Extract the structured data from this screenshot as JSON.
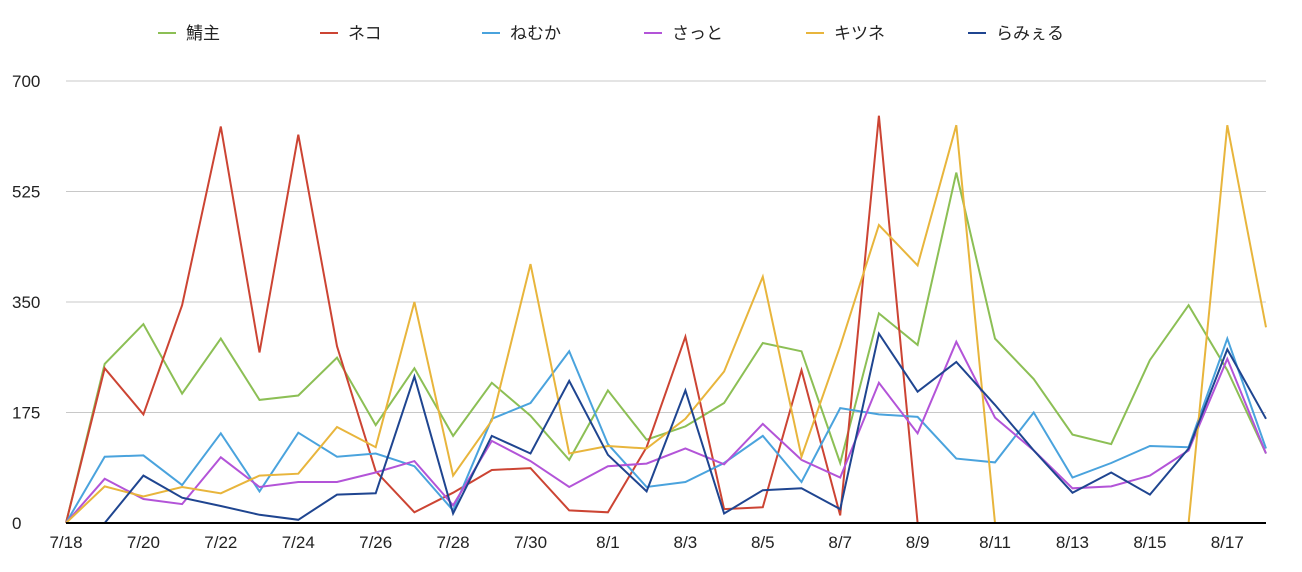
{
  "chart_data": {
    "type": "line",
    "title": "",
    "xlabel": "",
    "ylabel": "",
    "legend_position": "top",
    "grid": true,
    "ylim": [
      0,
      700
    ],
    "y_ticks": [
      "0",
      "175",
      "350",
      "525",
      "700"
    ],
    "x_tick_labels": [
      "7/18",
      "7/20",
      "7/22",
      "7/24",
      "7/26",
      "7/28",
      "7/30",
      "8/1",
      "8/3",
      "8/5",
      "8/7",
      "8/9",
      "8/11",
      "8/13",
      "8/15",
      "8/17"
    ],
    "categories": [
      "7/18",
      "7/19",
      "7/20",
      "7/21",
      "7/22",
      "7/23",
      "7/24",
      "7/25",
      "7/26",
      "7/27",
      "7/28",
      "7/29",
      "7/30",
      "7/31",
      "8/1",
      "8/2",
      "8/3",
      "8/4",
      "8/5",
      "8/6",
      "8/7",
      "8/8",
      "8/9",
      "8/10",
      "8/11",
      "8/12",
      "8/13",
      "8/14",
      "8/15",
      "8/16",
      "8/17",
      "8/18"
    ],
    "series": [
      {
        "name": "鯖主",
        "color": "#8cbf55",
        "values": [
          0,
          252,
          315,
          205,
          292,
          195,
          202,
          262,
          155,
          245,
          138,
          222,
          170,
          100,
          210,
          132,
          153,
          190,
          285,
          272,
          95,
          332,
          282,
          555,
          292,
          228,
          140,
          125,
          258,
          345,
          242,
          110
        ]
      },
      {
        "name": "ネコ",
        "color": "#cc4433",
        "values": [
          0,
          245,
          172,
          345,
          628,
          270,
          615,
          280,
          82,
          17,
          48,
          84,
          87,
          20,
          17,
          120,
          295,
          22,
          25,
          242,
          12,
          645,
          0,
          null,
          null,
          null,
          null,
          null,
          null,
          null,
          null,
          null
        ]
      },
      {
        "name": "ねむか",
        "color": "#4aa3dd",
        "values": [
          0,
          105,
          107,
          60,
          142,
          50,
          143,
          105,
          110,
          90,
          20,
          165,
          190,
          272,
          125,
          57,
          65,
          95,
          138,
          65,
          182,
          172,
          168,
          102,
          96,
          175,
          72,
          95,
          122,
          120,
          292,
          118
        ]
      },
      {
        "name": "さっと",
        "color": "#b354d8",
        "values": [
          0,
          70,
          38,
          30,
          104,
          57,
          65,
          65,
          80,
          98,
          28,
          130,
          98,
          57,
          90,
          94,
          118,
          93,
          157,
          100,
          72,
          222,
          142,
          287,
          167,
          115,
          55,
          58,
          75,
          115,
          260,
          110
        ]
      },
      {
        "name": "キツネ",
        "color": "#e8b53c",
        "values": [
          0,
          58,
          42,
          57,
          47,
          75,
          78,
          152,
          120,
          350,
          75,
          162,
          410,
          110,
          122,
          118,
          165,
          240,
          390,
          105,
          280,
          472,
          408,
          630,
          0,
          0,
          0,
          0,
          0,
          0,
          630,
          310
        ]
      },
      {
        "name": "らみぇる",
        "color": "#1f4590",
        "values": [
          0,
          0,
          75,
          40,
          27,
          13,
          5,
          45,
          47,
          232,
          15,
          138,
          110,
          225,
          108,
          50,
          210,
          15,
          52,
          55,
          22,
          300,
          208,
          255,
          187,
          115,
          48,
          80,
          45,
          118,
          275,
          165
        ]
      }
    ]
  }
}
